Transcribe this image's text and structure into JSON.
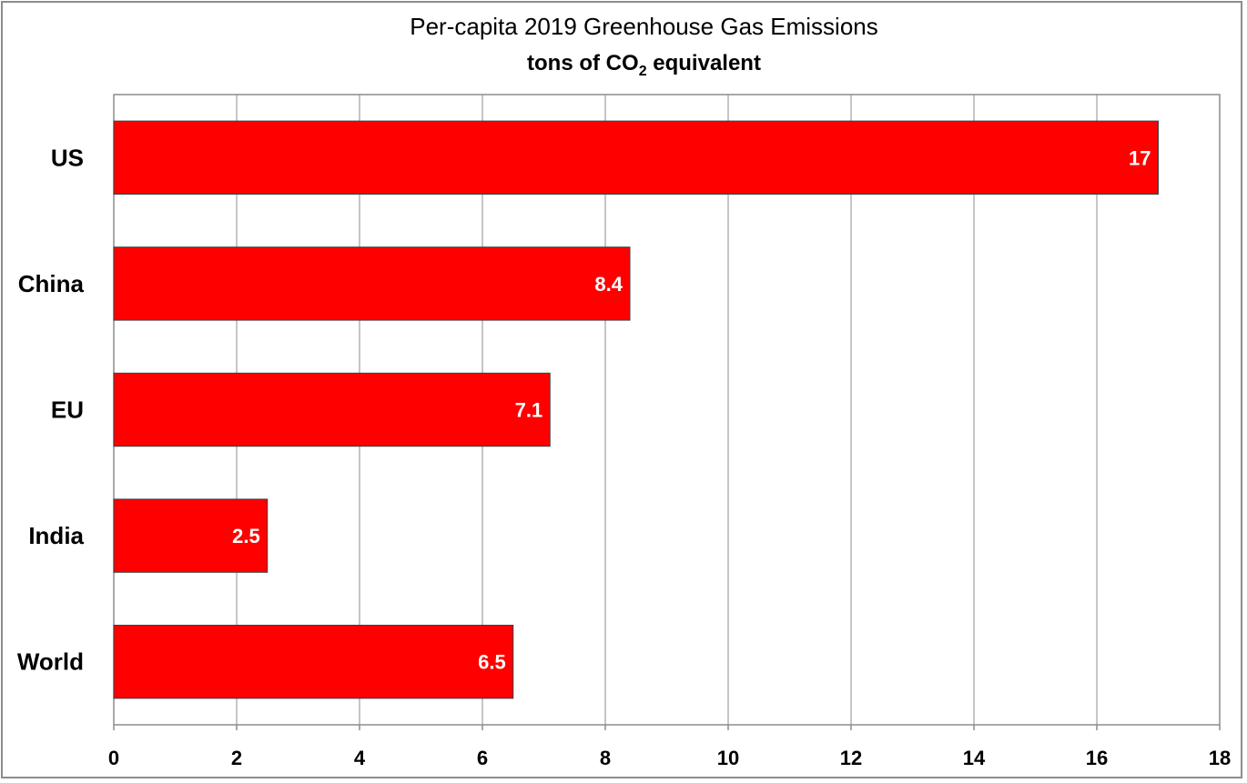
{
  "chart_data": {
    "type": "bar",
    "orientation": "horizontal",
    "title": "Per-capita 2019 Greenhouse Gas Emissions",
    "subtitle_pre": "tons of CO",
    "subtitle_sub": "2",
    "subtitle_post": " equivalent",
    "categories": [
      "US",
      "China",
      "EU",
      "India",
      "World"
    ],
    "values": [
      17,
      8.4,
      7.1,
      2.5,
      6.5
    ],
    "data_labels": [
      "17",
      "8.4",
      "7.1",
      "2.5",
      "6.5"
    ],
    "xlim": [
      0,
      18
    ],
    "xticks": [
      0,
      2,
      4,
      6,
      8,
      10,
      12,
      14,
      16,
      18
    ],
    "xlabel": "",
    "ylabel": "",
    "grid": "vertical",
    "bar_color": "#ff0000",
    "label_color": "#ffffff"
  }
}
